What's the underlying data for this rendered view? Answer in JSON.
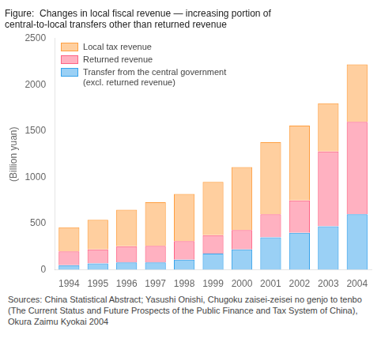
{
  "chart_data": {
    "type": "bar",
    "title": "Figure:  Changes in local fiscal revenue — increasing portion of\ncentral-to-local transfers other than returned revenue",
    "categories": [
      "1994",
      "1995",
      "1996",
      "1997",
      "1998",
      "1999",
      "2000",
      "2001",
      "2002",
      "2003",
      "2004"
    ],
    "series": [
      {
        "name": "Transfer from the central government\n(excl. returned revenue)",
        "values": [
          50,
          70,
          80,
          80,
          110,
          175,
          220,
          350,
          400,
          470,
          600
        ]
      },
      {
        "name": "Returned revenue",
        "values": [
          150,
          150,
          175,
          180,
          200,
          200,
          210,
          250,
          350,
          810,
          1000
        ]
      },
      {
        "name": "Local tax revenue",
        "values": [
          260,
          320,
          395,
          470,
          510,
          575,
          680,
          780,
          810,
          520,
          620
        ]
      }
    ],
    "stacked": true,
    "ylabel": "(Billion yuan)",
    "ylim": [
      0,
      2500
    ],
    "yticks": [
      0,
      500,
      1000,
      1500,
      2000,
      2500
    ],
    "grid": false,
    "legend": "upper left",
    "annotations": [
      "Sources: China Statistical Abstract; Yasushi Onishi, Chugoku zaisei-zeisei no genjo to tenbo (The Current Status and Future Prospects of the Public Finance and Tax System of China), Okura Zaimu Kyokai 2004"
    ]
  }
}
